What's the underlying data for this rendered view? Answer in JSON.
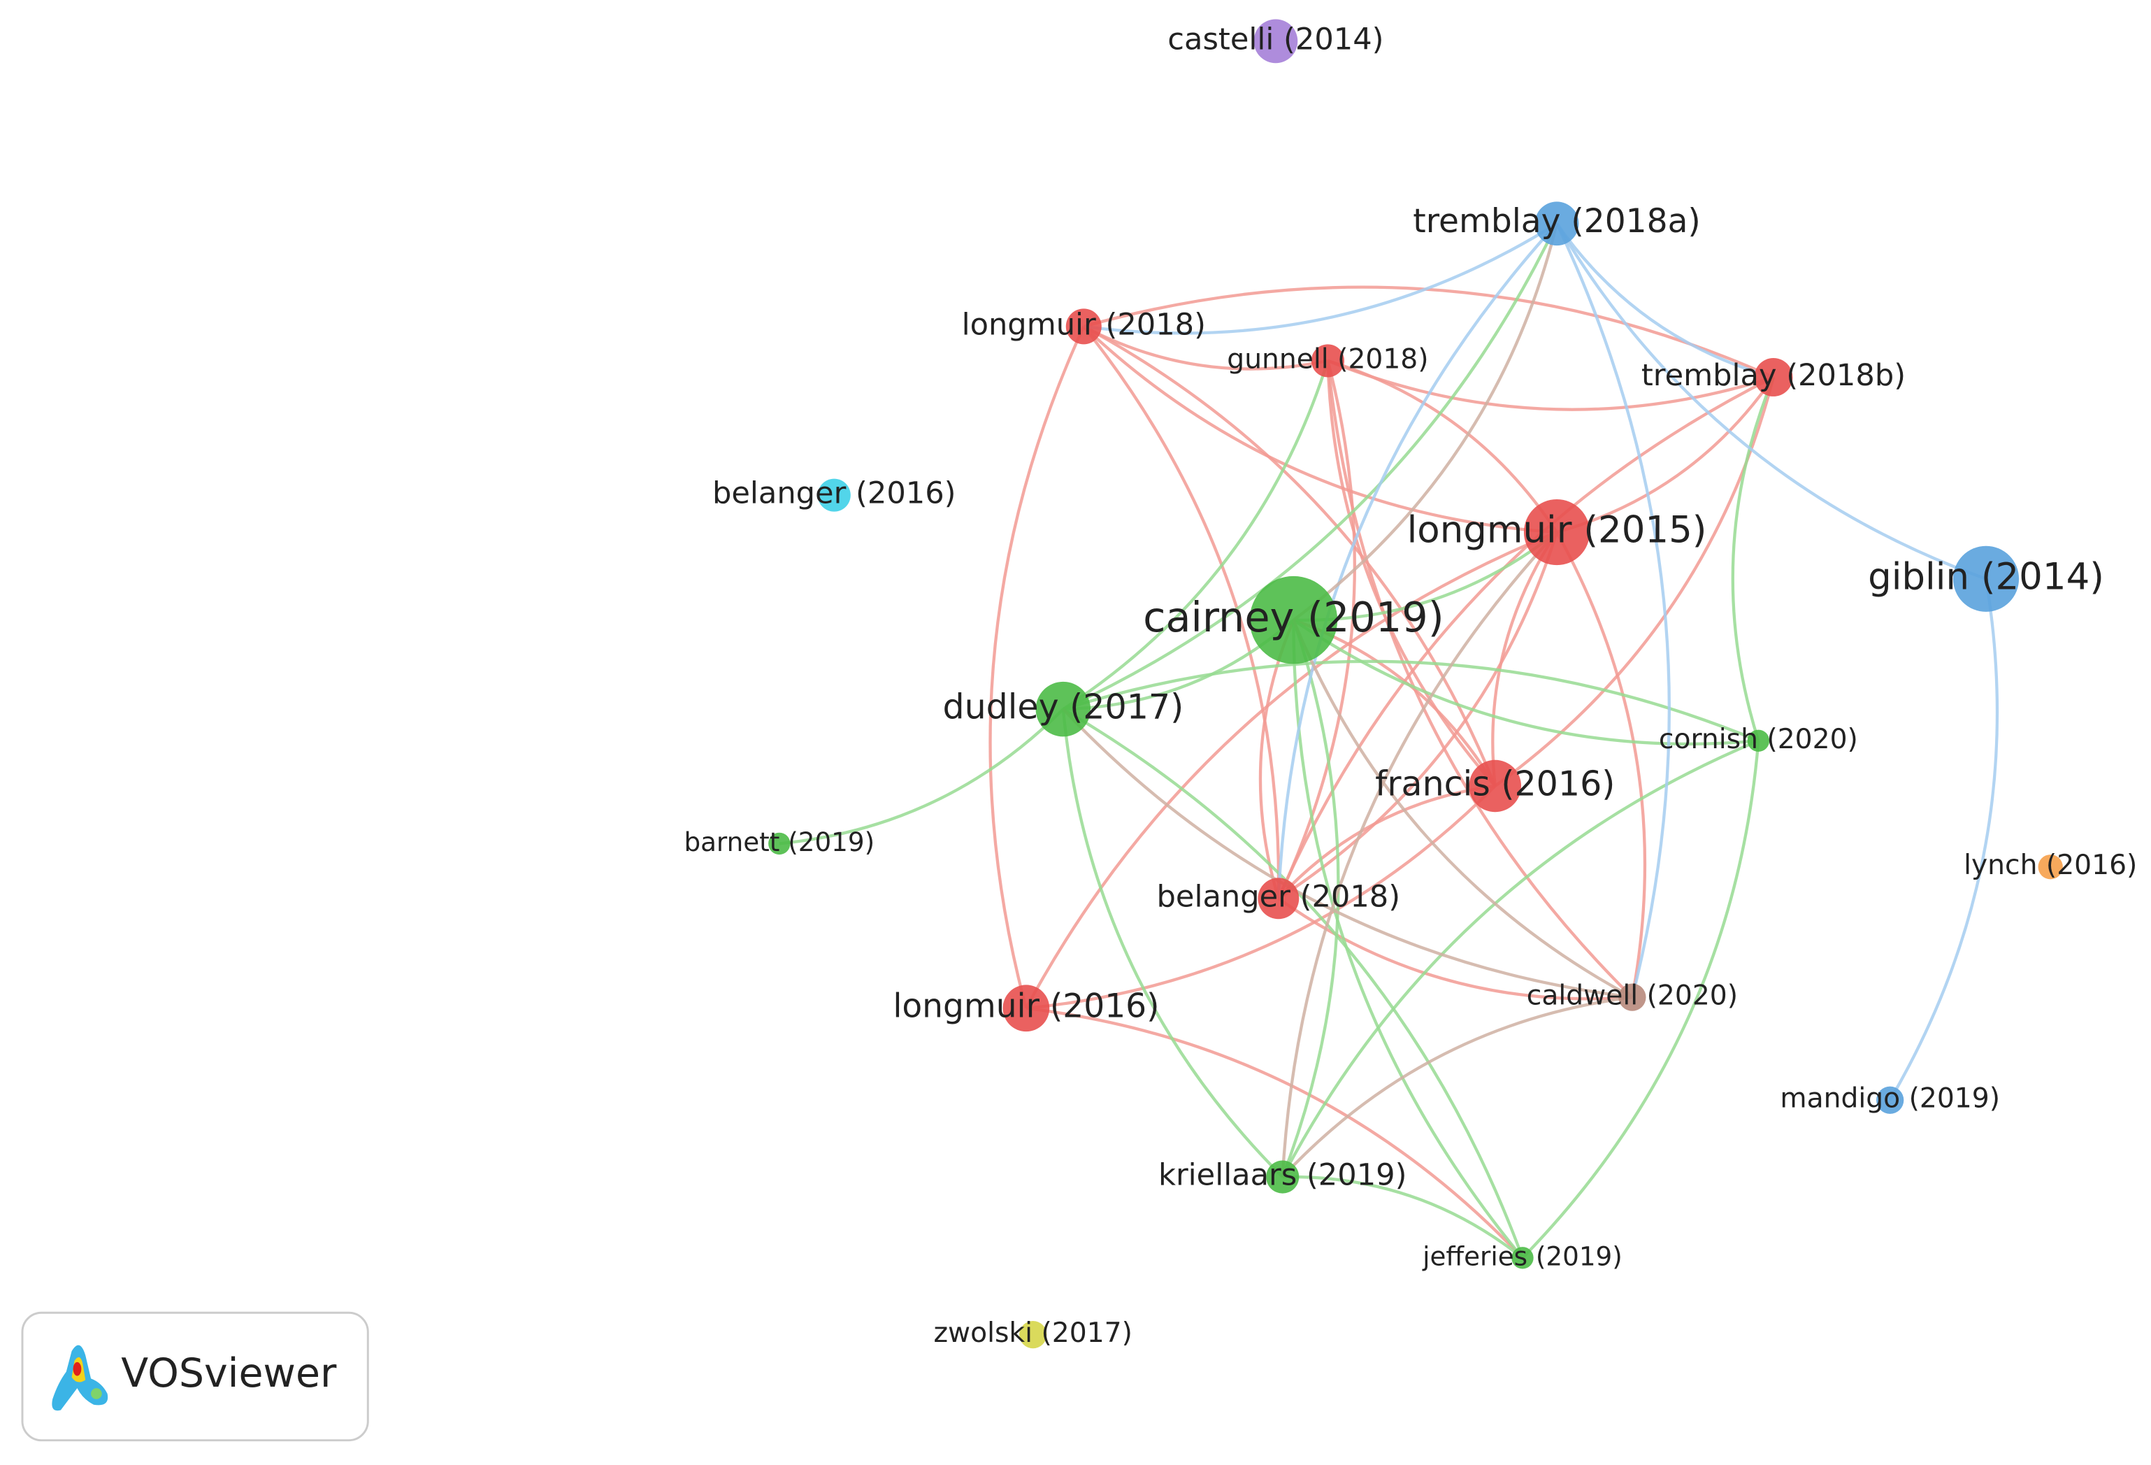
{
  "nodes": [
    {
      "label": "castelli (2014)"
    },
    {
      "label": "tremblay (2018a)"
    },
    {
      "label": "longmuir (2018)"
    },
    {
      "label": "gunnell (2018)"
    },
    {
      "label": "tremblay (2018b)"
    },
    {
      "label": "belanger (2016)"
    },
    {
      "label": "longmuir (2015)"
    },
    {
      "label": "giblin (2014)"
    },
    {
      "label": "cairney (2019)"
    },
    {
      "label": "dudley (2017)"
    },
    {
      "label": "cornish (2020)"
    },
    {
      "label": "francis (2016)"
    },
    {
      "label": "barnett (2019)"
    },
    {
      "label": "lynch (2016)"
    },
    {
      "label": "belanger (2018)"
    },
    {
      "label": "longmuir (2016)"
    },
    {
      "label": "caldwell (2020)"
    },
    {
      "label": "mandigo (2019)"
    },
    {
      "label": "kriellaars (2019)"
    },
    {
      "label": "jefferies (2019)"
    },
    {
      "label": "zwolski (2017)"
    }
  ],
  "logo": {
    "text": "VOSviewer"
  }
}
